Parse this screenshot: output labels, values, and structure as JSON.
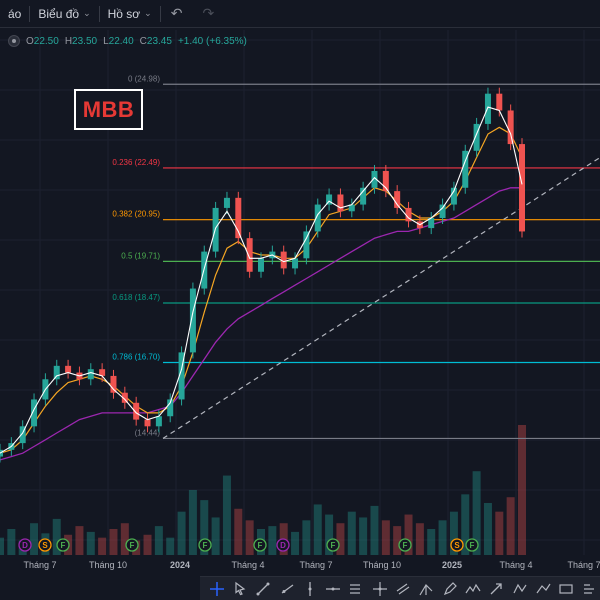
{
  "topbar": {
    "menu_cut": "áo",
    "chart_menu": "Biểu đồ",
    "profile_menu": "Hồ sơ"
  },
  "legend": {
    "o_label": "O",
    "o_value": "22.50",
    "h_label": "H",
    "h_value": "23.50",
    "l_label": "L",
    "l_value": "22.40",
    "c_label": "C",
    "c_value": "23.45",
    "change": "+1.40 (+6.35%)"
  },
  "logo": {
    "text": "MBB"
  },
  "colors": {
    "background": "#131722",
    "up": "#26a69a",
    "down": "#ef5350",
    "ma_fast": "#ffffff",
    "ma_mid": "#f5a623",
    "ma_slow": "#9c27b0"
  },
  "chart_data": {
    "type": "line",
    "x_tick_labels": [
      "Tháng 7",
      "Tháng 10",
      "2024",
      "Tháng 4",
      "Tháng 7",
      "Tháng 10",
      "2025",
      "Tháng 4",
      "Tháng 7"
    ],
    "x_tick_bold": [
      false,
      false,
      true,
      false,
      false,
      false,
      true,
      false,
      false
    ],
    "ylim": [
      13.5,
      26.0
    ],
    "fib_levels": [
      {
        "label": "0 (24.98)",
        "value": 24.98,
        "color": "#787b86"
      },
      {
        "label": "0.236 (22.49)",
        "value": 22.49,
        "color": "#f23645"
      },
      {
        "label": "0.382 (20.95)",
        "value": 20.95,
        "color": "#ff9800"
      },
      {
        "label": "0.5 (19.71)",
        "value": 19.71,
        "color": "#4caf50"
      },
      {
        "label": "0.618 (18.47)",
        "value": 18.47,
        "color": "#089981"
      },
      {
        "label": "0.786 (16.70)",
        "value": 16.7,
        "color": "#00bcd4"
      },
      {
        "label": "(14.44)",
        "value": 14.44,
        "color": "#787b86"
      }
    ],
    "price_series": [
      14.1,
      14.3,
      14.8,
      15.6,
      16.2,
      16.6,
      16.4,
      16.2,
      16.5,
      16.3,
      15.8,
      15.5,
      15.0,
      14.8,
      15.1,
      15.6,
      17.0,
      18.9,
      20.0,
      21.3,
      21.6,
      20.4,
      19.4,
      19.8,
      20.0,
      19.5,
      19.8,
      20.6,
      21.4,
      21.7,
      21.2,
      21.4,
      21.9,
      22.4,
      21.8,
      21.3,
      20.9,
      20.7,
      21.0,
      21.4,
      21.9,
      23.0,
      23.8,
      24.7,
      24.2,
      23.2,
      20.6
    ],
    "ma_fast_series": [
      14.0,
      14.2,
      14.6,
      15.3,
      15.9,
      16.3,
      16.4,
      16.3,
      16.4,
      16.3,
      15.9,
      15.6,
      15.2,
      15.0,
      15.1,
      15.5,
      16.5,
      18.2,
      19.5,
      20.7,
      21.2,
      20.6,
      19.8,
      19.8,
      19.9,
      19.7,
      19.8,
      20.4,
      21.1,
      21.5,
      21.3,
      21.4,
      21.8,
      22.2,
      21.9,
      21.4,
      21.0,
      20.8,
      21.0,
      21.3,
      21.8,
      22.7,
      23.5,
      24.3,
      24.2,
      23.5,
      22.0
    ],
    "ma_mid_series": [
      14.0,
      14.1,
      14.4,
      14.9,
      15.4,
      15.8,
      16.1,
      16.2,
      16.3,
      16.2,
      16.0,
      15.7,
      15.4,
      15.2,
      15.2,
      15.4,
      16.0,
      17.0,
      18.2,
      19.3,
      20.1,
      20.3,
      20.0,
      19.9,
      19.9,
      19.8,
      19.8,
      20.1,
      20.6,
      21.1,
      21.2,
      21.3,
      21.6,
      21.9,
      21.8,
      21.5,
      21.2,
      21.0,
      21.0,
      21.2,
      21.5,
      22.1,
      22.8,
      23.5,
      23.7,
      23.5,
      22.8
    ],
    "ma_slow_series": [
      13.8,
      13.9,
      14.0,
      14.2,
      14.4,
      14.6,
      14.8,
      15.0,
      15.1,
      15.2,
      15.2,
      15.2,
      15.2,
      15.2,
      15.3,
      15.4,
      15.8,
      16.3,
      16.8,
      17.3,
      17.7,
      18.0,
      18.2,
      18.4,
      18.6,
      18.8,
      19.0,
      19.2,
      19.4,
      19.6,
      19.8,
      20.0,
      20.2,
      20.4,
      20.5,
      20.6,
      20.6,
      20.7,
      20.8,
      20.9,
      21.0,
      21.2,
      21.4,
      21.6,
      21.8,
      21.9,
      21.9
    ],
    "volume_series": [
      12,
      18,
      10,
      22,
      15,
      25,
      14,
      20,
      16,
      12,
      18,
      22,
      10,
      14,
      20,
      12,
      30,
      45,
      38,
      26,
      55,
      32,
      24,
      18,
      20,
      22,
      16,
      24,
      35,
      28,
      22,
      30,
      26,
      34,
      24,
      20,
      28,
      22,
      18,
      24,
      30,
      42,
      58,
      36,
      30,
      40,
      90
    ],
    "trendline": {
      "from": [
        14.44,
        0.27
      ],
      "to": [
        22.8,
        1.0
      ]
    },
    "event_markers": [
      {
        "letter": "D",
        "kind": "dividend"
      },
      {
        "letter": "S",
        "kind": "split"
      },
      {
        "letter": "F",
        "kind": "earnings"
      },
      {
        "letter": "F",
        "kind": "earnings"
      },
      {
        "letter": "F",
        "kind": "earnings"
      },
      {
        "letter": "F",
        "kind": "earnings"
      },
      {
        "letter": "D",
        "kind": "dividend"
      },
      {
        "letter": "F",
        "kind": "earnings"
      },
      {
        "letter": "F",
        "kind": "earnings"
      },
      {
        "letter": "S",
        "kind": "split"
      },
      {
        "letter": "F",
        "kind": "earnings"
      }
    ]
  },
  "toolbar": {
    "tools": [
      "crosshair-icon",
      "arrow-cursor-icon",
      "trend-line-icon",
      "ray-icon",
      "vertical-line-icon",
      "horizontal-line-icon",
      "fib-icon",
      "cross-line-icon",
      "parallel-channel-icon",
      "pitchfork-icon",
      "pen-icon",
      "zigzag-icon",
      "arrow-icon",
      "pattern-icon",
      "path-icon",
      "measure-icon",
      "marker-icon"
    ]
  }
}
